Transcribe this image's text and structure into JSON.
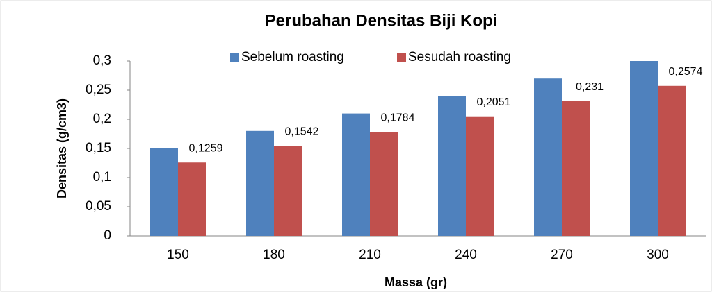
{
  "chart_data": {
    "type": "bar",
    "title": "Perubahan Densitas Biji Kopi",
    "x_label": "Massa (gr)",
    "y_label": "Densitas (g/cm3)",
    "categories": [
      "150",
      "180",
      "210",
      "240",
      "270",
      "300"
    ],
    "series": [
      {
        "name": "Sebelum roasting",
        "color": "#4f81bd",
        "values": [
          0.15,
          0.18,
          0.21,
          0.24,
          0.27,
          0.3
        ]
      },
      {
        "name": "Sesudah roasting",
        "color": "#c0504d",
        "values": [
          0.1259,
          0.1542,
          0.1784,
          0.2051,
          0.231,
          0.2574
        ],
        "value_labels": [
          "0,1259",
          "0,1542",
          "0,1784",
          "0,2051",
          "0,231",
          "0,2574"
        ]
      }
    ],
    "ylim": [
      0,
      0.3
    ],
    "yticks": [
      0,
      {
        "value": 0.05,
        "label": "0,05"
      },
      {
        "value": 0.1,
        "label": "0,1"
      },
      {
        "value": 0.15,
        "label": "0,15"
      },
      {
        "value": 0.2,
        "label": "0,2"
      },
      {
        "value": 0.25,
        "label": "0,25"
      },
      {
        "value": 0.3,
        "label": "0,3"
      }
    ],
    "legend": "top",
    "grid": false
  }
}
